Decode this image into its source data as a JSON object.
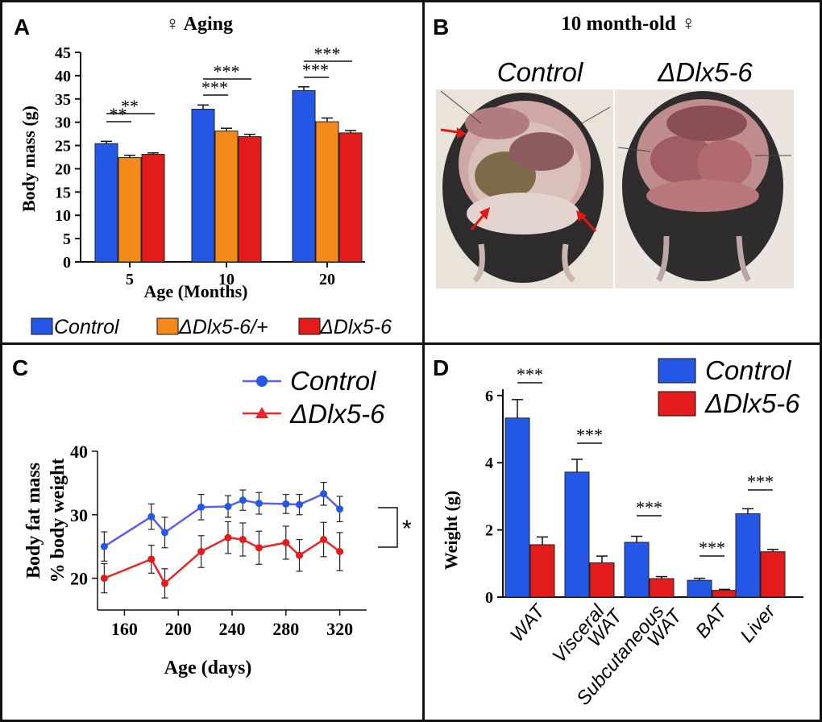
{
  "colors": {
    "control": "#2457e6",
    "het": "#f58a1c",
    "ko": "#e31b1b",
    "line_control": "#5b5ef0",
    "line_ko": "#e82828",
    "arrow": "#e01818"
  },
  "panelA": {
    "letter": "A",
    "title": "♀ Aging",
    "chart_data": {
      "type": "bar",
      "categories": [
        "5",
        "10",
        "20"
      ],
      "series": [
        {
          "name": "Control",
          "values": [
            25.4,
            32.8,
            36.8
          ],
          "errors": [
            0.5,
            0.9,
            0.8
          ]
        },
        {
          "name": "ΔDlx5-6/+",
          "values": [
            22.4,
            28.1,
            30.1
          ],
          "errors": [
            0.5,
            0.6,
            0.8
          ]
        },
        {
          "name": "ΔDlx5-6",
          "values": [
            23.1,
            26.9,
            27.7
          ],
          "errors": [
            0.3,
            0.5,
            0.5
          ]
        }
      ],
      "ylabel": "Body mass (g)",
      "xlabel": "Age (Months)",
      "ylim": [
        0,
        45
      ],
      "yticks": [
        "0",
        "5",
        "10",
        "15",
        "20",
        "25",
        "30",
        "35",
        "40",
        "45"
      ],
      "annotations": [
        "**",
        "**",
        "***",
        "***",
        "***",
        "***"
      ]
    },
    "legend": [
      "Control",
      "ΔDlx5-6/+",
      "ΔDlx5-6"
    ]
  },
  "panelB": {
    "letter": "B",
    "title": "10 month-old ♀",
    "label_control": "Control",
    "label_ko": "ΔDlx5-6"
  },
  "panelC": {
    "letter": "C",
    "chart_data": {
      "type": "line",
      "series": [
        {
          "name": "Control",
          "x": [
            145,
            180,
            190,
            217,
            237,
            248,
            260,
            280,
            290,
            308,
            320
          ],
          "y": [
            25,
            29.7,
            27.2,
            31.2,
            31.3,
            32.3,
            31.8,
            31.7,
            31.6,
            33.3,
            30.9
          ],
          "errors": [
            2.3,
            2,
            2.4,
            2,
            1.7,
            1.6,
            1.7,
            1.5,
            1.6,
            1.8,
            2
          ]
        },
        {
          "name": "ΔDlx5-6",
          "x": [
            145,
            180,
            190,
            217,
            237,
            248,
            260,
            280,
            290,
            308,
            320
          ],
          "y": [
            20,
            23,
            19.2,
            24.2,
            26.4,
            26.1,
            24.8,
            25.6,
            23.6,
            26.1,
            24.2
          ],
          "errors": [
            2.3,
            2.2,
            2.3,
            2.5,
            2.5,
            2.6,
            2.6,
            2.6,
            2.5,
            2.7,
            3
          ]
        }
      ],
      "ylabel_line1": "Body fat mass",
      "ylabel_line2": "% body weight",
      "xlabel": "Age (days)",
      "xticks": [
        "160",
        "200",
        "240",
        "280",
        "320"
      ],
      "yticks": [
        "20",
        "30",
        "40"
      ],
      "xlim": [
        140,
        340
      ],
      "ylim": [
        15,
        40
      ],
      "significance": "*"
    },
    "legend": [
      "Control",
      "ΔDlx5-6"
    ]
  },
  "panelD": {
    "letter": "D",
    "chart_data": {
      "type": "bar",
      "categories": [
        "WAT",
        "Visceral WAT",
        "Subcutaneous WAT",
        "BAT",
        "Liver"
      ],
      "category_lines": [
        [
          "WAT"
        ],
        [
          "Visceral",
          "WAT"
        ],
        [
          "Subcutaneous",
          "WAT"
        ],
        [
          "BAT"
        ],
        [
          "Liver"
        ]
      ],
      "series": [
        {
          "name": "Control",
          "values": [
            5.33,
            3.72,
            1.63,
            0.5,
            2.48
          ],
          "errors": [
            0.55,
            0.38,
            0.18,
            0.06,
            0.15
          ]
        },
        {
          "name": "ΔDlx5-6",
          "values": [
            1.56,
            1.02,
            0.55,
            0.2,
            1.35
          ],
          "errors": [
            0.23,
            0.2,
            0.06,
            0.03,
            0.07
          ]
        }
      ],
      "ylabel": "Weight (g)",
      "ylim": [
        0,
        6.5
      ],
      "yticks": [
        "0",
        "2",
        "4",
        "6"
      ],
      "annotations": [
        "***",
        "***",
        "***",
        "***",
        "***"
      ]
    },
    "legend": [
      "Control",
      "ΔDlx5-6"
    ]
  }
}
